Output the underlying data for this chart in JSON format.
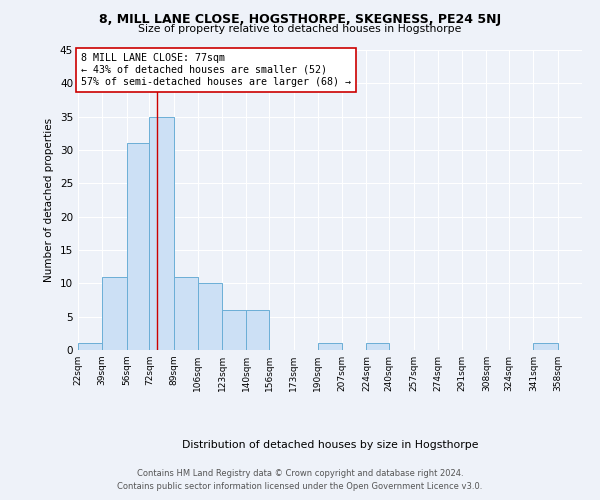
{
  "title": "8, MILL LANE CLOSE, HOGSTHORPE, SKEGNESS, PE24 5NJ",
  "subtitle": "Size of property relative to detached houses in Hogsthorpe",
  "xlabel": "Distribution of detached houses by size in Hogsthorpe",
  "ylabel": "Number of detached properties",
  "bar_labels": [
    "22sqm",
    "39sqm",
    "56sqm",
    "72sqm",
    "89sqm",
    "106sqm",
    "123sqm",
    "140sqm",
    "156sqm",
    "173sqm",
    "190sqm",
    "207sqm",
    "224sqm",
    "240sqm",
    "257sqm",
    "274sqm",
    "291sqm",
    "308sqm",
    "324sqm",
    "341sqm",
    "358sqm"
  ],
  "bar_values": [
    1,
    11,
    31,
    35,
    11,
    10,
    6,
    6,
    0,
    0,
    1,
    0,
    1,
    0,
    0,
    0,
    0,
    0,
    0,
    1,
    0
  ],
  "bar_color": "#cce0f5",
  "bar_edge_color": "#6baed6",
  "property_line_x": 77,
  "bin_edges": [
    22,
    39,
    56,
    72,
    89,
    106,
    123,
    140,
    156,
    173,
    190,
    207,
    224,
    240,
    257,
    274,
    291,
    308,
    324,
    341,
    358,
    375
  ],
  "annotation_title": "8 MILL LANE CLOSE: 77sqm",
  "annotation_line1": "← 43% of detached houses are smaller (52)",
  "annotation_line2": "57% of semi-detached houses are larger (68) →",
  "vline_color": "#cc0000",
  "ylim": [
    0,
    45
  ],
  "yticks": [
    0,
    5,
    10,
    15,
    20,
    25,
    30,
    35,
    40,
    45
  ],
  "footer_line1": "Contains HM Land Registry data © Crown copyright and database right 2024.",
  "footer_line2": "Contains public sector information licensed under the Open Government Licence v3.0.",
  "background_color": "#eef2f9"
}
